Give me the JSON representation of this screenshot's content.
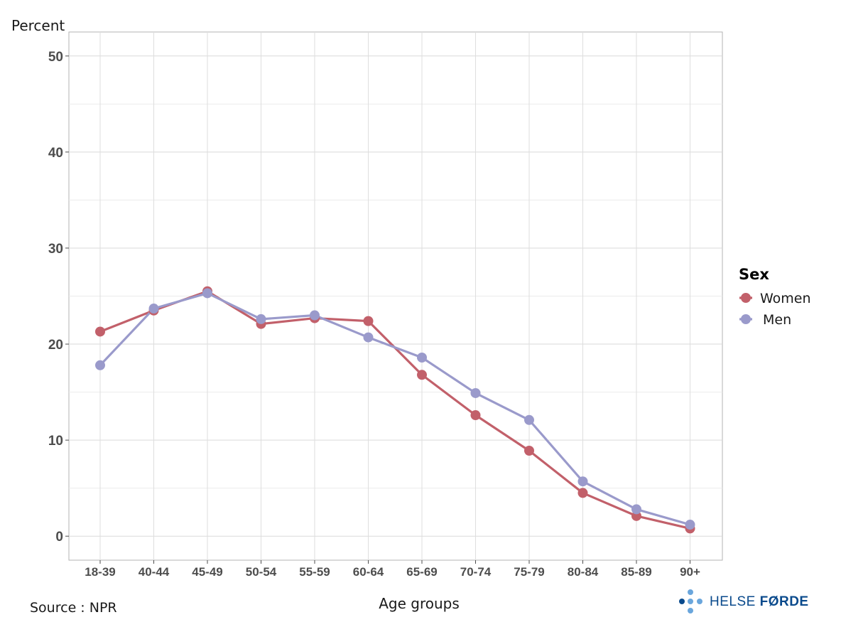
{
  "chart_data": {
    "type": "line",
    "ylabel": "Percent",
    "xlabel": "Age groups",
    "categories": [
      "18-39",
      "40-44",
      "45-49",
      "50-54",
      "55-59",
      "60-64",
      "65-69",
      "70-74",
      "75-79",
      "80-84",
      "85-89",
      "90+"
    ],
    "ylim": [
      -2.5,
      52.5
    ],
    "yticks": [
      0,
      10,
      20,
      30,
      40,
      50
    ],
    "grid": true,
    "legend": {
      "title": "Sex",
      "position": "right"
    },
    "series": [
      {
        "name": "Women",
        "color": "#c2606a",
        "values": [
          21.3,
          23.5,
          25.5,
          22.1,
          22.7,
          22.4,
          16.8,
          12.6,
          8.9,
          4.5,
          2.1,
          0.8
        ]
      },
      {
        "name": "Men",
        "color": "#9a9acb",
        "values": [
          17.8,
          23.7,
          25.3,
          22.6,
          23.0,
          20.7,
          18.6,
          14.9,
          12.1,
          5.7,
          2.8,
          1.2
        ]
      }
    ]
  },
  "source": "Source : NPR",
  "logo": {
    "part1": "HELSE ",
    "part2": "FØRDE",
    "icon": "cross-dots-icon",
    "color": "#0a4a8c",
    "dot_color": "#6aa6dc"
  }
}
